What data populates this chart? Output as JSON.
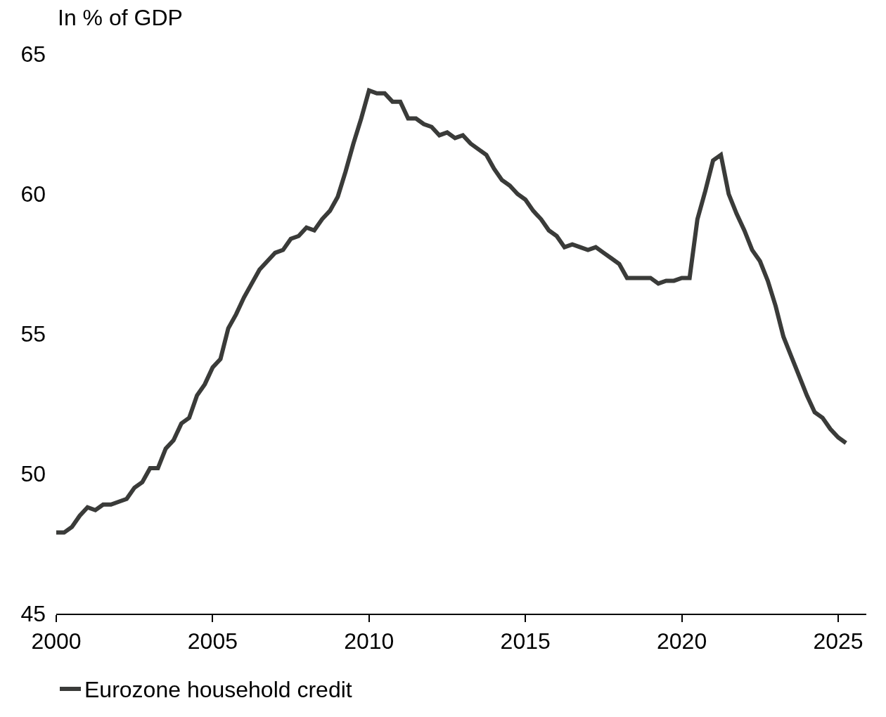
{
  "chart_data": {
    "type": "line",
    "ylabel": "In % of GDP",
    "x": [
      2000,
      2000.25,
      2000.5,
      2000.75,
      2001,
      2001.25,
      2001.5,
      2001.75,
      2002,
      2002.25,
      2002.5,
      2002.75,
      2003,
      2003.25,
      2003.5,
      2003.75,
      2004,
      2004.25,
      2004.5,
      2004.75,
      2005,
      2005.25,
      2005.5,
      2005.75,
      2006,
      2006.25,
      2006.5,
      2006.75,
      2007,
      2007.25,
      2007.5,
      2007.75,
      2008,
      2008.25,
      2008.5,
      2008.75,
      2009,
      2009.25,
      2009.5,
      2009.75,
      2010,
      2010.25,
      2010.5,
      2010.75,
      2011,
      2011.25,
      2011.5,
      2011.75,
      2012,
      2012.25,
      2012.5,
      2012.75,
      2013,
      2013.25,
      2013.5,
      2013.75,
      2014,
      2014.25,
      2014.5,
      2014.75,
      2015,
      2015.25,
      2015.5,
      2015.75,
      2016,
      2016.25,
      2016.5,
      2016.75,
      2017,
      2017.25,
      2017.5,
      2017.75,
      2018,
      2018.25,
      2018.5,
      2018.75,
      2019,
      2019.25,
      2019.5,
      2019.75,
      2020,
      2020.25,
      2020.5,
      2020.75,
      2021,
      2021.25,
      2021.5,
      2021.75,
      2022,
      2022.25,
      2022.5,
      2022.75,
      2023,
      2023.25,
      2023.5,
      2023.75,
      2024,
      2024.25,
      2024.5,
      2024.75,
      2025,
      2025.25
    ],
    "series": [
      {
        "name": "Eurozone household credit",
        "color": "#3a3b39",
        "values": [
          47.9,
          47.9,
          48.1,
          48.5,
          48.8,
          48.7,
          48.9,
          48.9,
          49.0,
          49.1,
          49.5,
          49.7,
          50.2,
          50.2,
          50.9,
          51.2,
          51.8,
          52.0,
          52.8,
          53.2,
          53.8,
          54.1,
          55.2,
          55.7,
          56.3,
          56.8,
          57.3,
          57.6,
          57.9,
          58.0,
          58.4,
          58.5,
          58.8,
          58.7,
          59.1,
          59.4,
          59.9,
          60.8,
          61.8,
          62.7,
          63.7,
          63.6,
          63.6,
          63.3,
          63.3,
          62.7,
          62.7,
          62.5,
          62.4,
          62.1,
          62.2,
          62.0,
          62.1,
          61.8,
          61.6,
          61.4,
          60.9,
          60.5,
          60.3,
          60.0,
          59.8,
          59.4,
          59.1,
          58.7,
          58.5,
          58.1,
          58.2,
          58.1,
          58.0,
          58.1,
          57.9,
          57.7,
          57.5,
          57.0,
          57.0,
          57.0,
          57.0,
          56.8,
          56.9,
          56.9,
          57.0,
          57.0,
          59.1,
          60.1,
          61.2,
          61.4,
          60.0,
          59.3,
          58.7,
          58.0,
          57.6,
          56.9,
          56.0,
          54.9,
          54.2,
          53.5,
          52.8,
          52.2,
          52.0,
          51.6,
          51.3,
          51.1
        ]
      }
    ],
    "xlim": [
      2000,
      2025.9
    ],
    "xticks": [
      2000,
      2005,
      2010,
      2015,
      2020,
      2025
    ],
    "ylim": [
      45,
      65
    ],
    "yticks": [
      45,
      50,
      55,
      60,
      65
    ],
    "grid": false,
    "legend": "bottom left",
    "marker": "none",
    "line_style": "solid"
  }
}
